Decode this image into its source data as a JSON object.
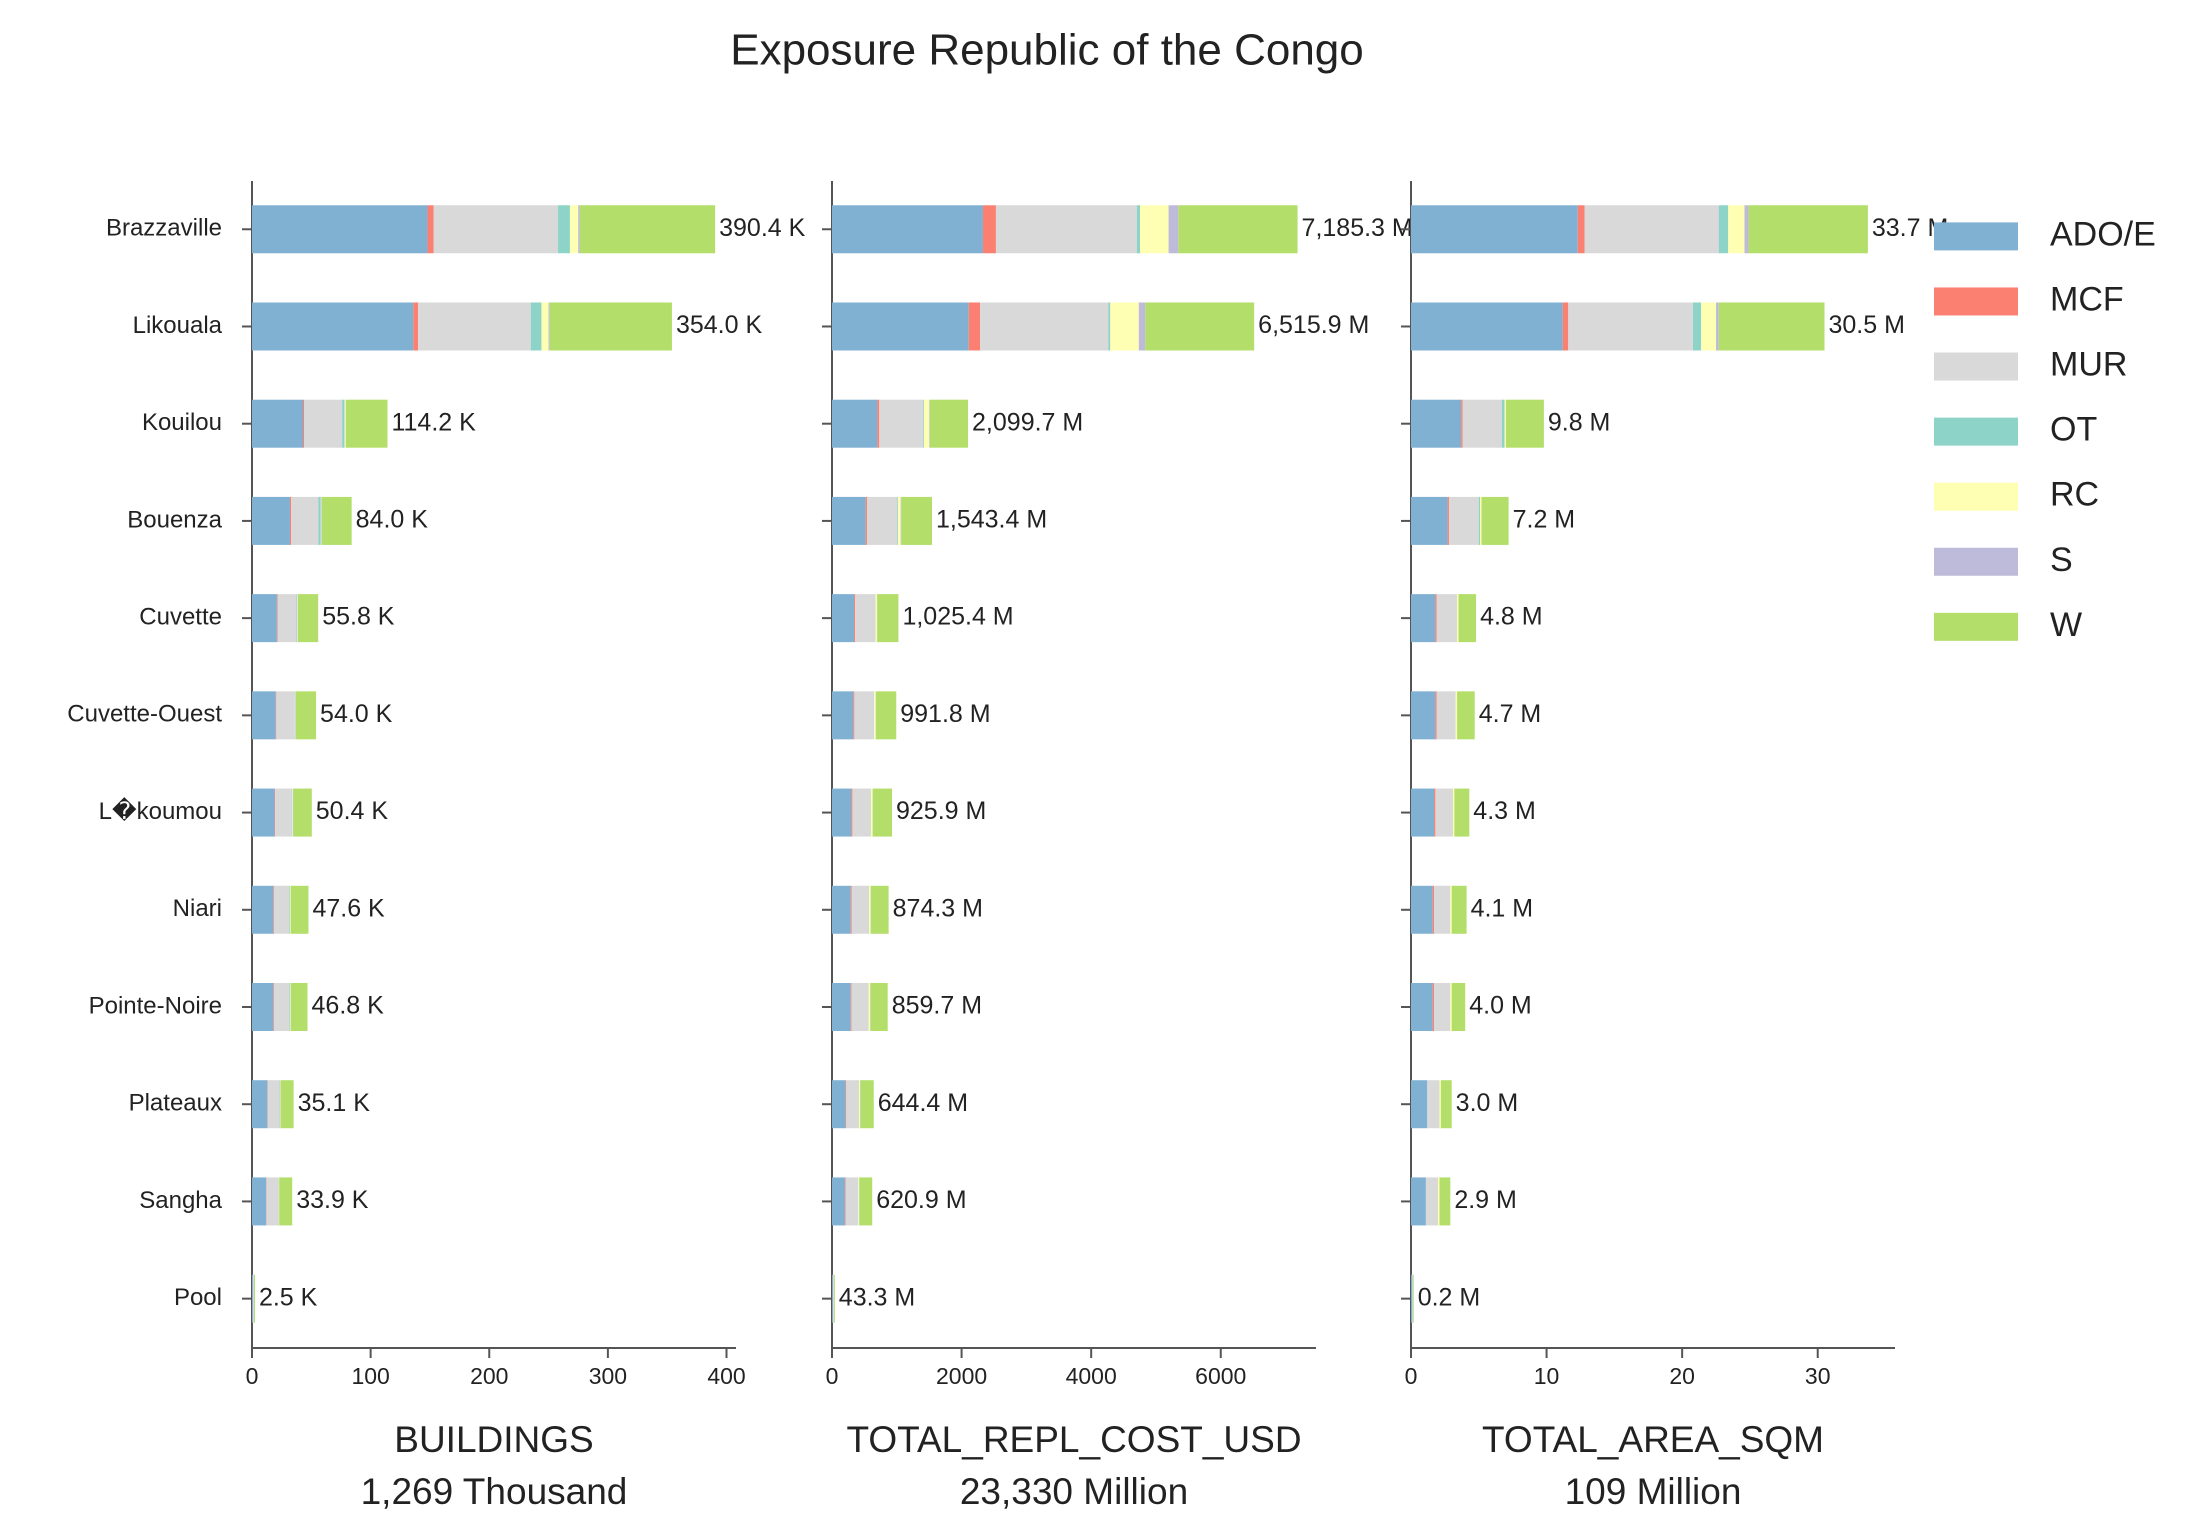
{
  "chart_data": {
    "type": "bar",
    "orientation": "horizontal",
    "stacked": true,
    "title": "Exposure Republic of the Congo",
    "categories": [
      "Brazzaville",
      "Likouala",
      "Kouilou",
      "Bouenza",
      "Cuvette",
      "Cuvette-Ouest",
      "L�koumou",
      "Niari",
      "Pointe-Noire",
      "Plateaux",
      "Sangha",
      "Pool"
    ],
    "series": [
      {
        "name": "ADO/E",
        "color": "#80b1d3"
      },
      {
        "name": "MCF",
        "color": "#fb8072"
      },
      {
        "name": "MUR",
        "color": "#d9d9d9"
      },
      {
        "name": "OT",
        "color": "#8dd3c7"
      },
      {
        "name": "RC",
        "color": "#ffffb3"
      },
      {
        "name": "S",
        "color": "#bebada"
      },
      {
        "name": "W",
        "color": "#b3de69"
      }
    ],
    "legend": "upper right",
    "panels": [
      {
        "xlabel": "BUILDINGS",
        "subtitle": "1,269 Thousand",
        "xlim": [
          0,
          408
        ],
        "xticks": [
          0,
          100,
          200,
          300,
          400
        ],
        "values": [
          [
            148,
            136,
            43,
            32,
            21,
            20,
            19,
            18,
            18,
            13,
            12,
            1
          ],
          [
            5,
            4,
            1,
            1,
            0.5,
            0.5,
            0.5,
            0.5,
            0.5,
            0.3,
            0.3,
            0
          ],
          [
            105,
            95,
            32,
            23,
            16,
            15,
            14,
            13,
            13,
            10,
            10,
            0.7
          ],
          [
            10,
            9,
            2,
            2,
            0.5,
            0.5,
            0.5,
            0.5,
            0.5,
            0.3,
            0.3,
            0
          ],
          [
            7,
            6,
            1,
            0.5,
            0.5,
            0.5,
            0.5,
            0.5,
            0.5,
            0.3,
            0.3,
            0
          ],
          [
            1.4,
            1,
            0.2,
            0.5,
            0.3,
            0.5,
            0.4,
            0.1,
            0.3,
            0.2,
            0,
            0
          ],
          [
            114,
            103,
            35,
            25,
            17,
            17,
            15.5,
            15,
            14,
            11,
            11,
            0.8
          ]
        ],
        "totals": [
          390.4,
          354.0,
          114.2,
          84.0,
          55.8,
          54.0,
          50.4,
          47.6,
          46.8,
          35.1,
          33.9,
          2.5
        ],
        "total_labels": [
          "390.4 K",
          "354.0 K",
          "114.2 K",
          "84.0 K",
          "55.8 K",
          "54.0 K",
          "50.4 K",
          "47.6 K",
          "46.8 K",
          "35.1 K",
          "33.9 K",
          "2.5 K"
        ]
      },
      {
        "xlabel": "TOTAL_REPL_COST_USD",
        "subtitle": "23,330 Million",
        "xlim": [
          0,
          7470
        ],
        "xticks": [
          0,
          2000,
          4000,
          6000
        ],
        "values": [
          [
            2330,
            2110,
            700,
            520,
            340,
            330,
            300,
            290,
            290,
            210,
            200,
            14
          ],
          [
            200,
            175,
            30,
            20,
            15,
            15,
            15,
            15,
            10,
            10,
            10,
            1
          ],
          [
            2175,
            1980,
            680,
            470,
            310,
            300,
            280,
            260,
            260,
            190,
            190,
            13
          ],
          [
            50,
            30,
            10,
            10,
            5,
            5,
            5,
            5,
            5,
            5,
            5,
            0
          ],
          [
            440,
            440,
            80,
            40,
            25,
            25,
            25,
            25,
            25,
            20,
            15,
            1
          ],
          [
            150,
            100,
            10,
            10,
            5,
            5,
            5,
            5,
            5,
            5,
            5,
            0
          ],
          [
            1840.3,
            1680.9,
            589.7,
            473.4,
            325.4,
            311.8,
            295.9,
            274.3,
            264.7,
            204.4,
            195.9,
            14.3
          ]
        ],
        "totals": [
          7185.3,
          6515.9,
          2099.7,
          1543.4,
          1025.4,
          991.8,
          925.9,
          874.3,
          859.7,
          644.4,
          620.9,
          43.3
        ],
        "total_labels": [
          "7,185.3 M",
          "6,515.9 M",
          "2,099.7 M",
          "1,543.4 M",
          "1,025.4 M",
          "991.8 M",
          "925.9 M",
          "874.3 M",
          "859.7 M",
          "644.4 M",
          "620.9 M",
          "43.3 M"
        ]
      },
      {
        "xlabel": "TOTAL_AREA_SQM",
        "subtitle": "109 Million",
        "xlim": [
          0,
          35.7
        ],
        "xticks": [
          0,
          10,
          20,
          30
        ],
        "values": [
          [
            12.3,
            11.2,
            3.7,
            2.7,
            1.8,
            1.8,
            1.7,
            1.6,
            1.6,
            1.2,
            1.1,
            0.1
          ],
          [
            0.5,
            0.4,
            0.1,
            0.1,
            0.1,
            0.1,
            0.1,
            0.1,
            0.1,
            0,
            0,
            0
          ],
          [
            9.9,
            9.2,
            2.9,
            2.2,
            1.5,
            1.4,
            1.3,
            1.2,
            1.2,
            0.9,
            0.9,
            0.05
          ],
          [
            0.7,
            0.6,
            0.2,
            0.1,
            0,
            0,
            0,
            0,
            0,
            0,
            0,
            0
          ],
          [
            1.2,
            1.1,
            0.1,
            0.1,
            0.1,
            0.1,
            0.1,
            0.1,
            0.1,
            0.1,
            0.1,
            0
          ],
          [
            0.3,
            0.2,
            0,
            0,
            0,
            0,
            0,
            0,
            0,
            0,
            0,
            0
          ],
          [
            8.8,
            7.8,
            2.8,
            2.0,
            1.3,
            1.3,
            1.1,
            1.1,
            1.0,
            0.8,
            0.8,
            0.05
          ]
        ],
        "totals": [
          33.7,
          30.5,
          9.8,
          7.2,
          4.8,
          4.7,
          4.3,
          4.1,
          4.0,
          3.0,
          2.9,
          0.2
        ],
        "total_labels": [
          "33.7 M",
          "30.5 M",
          "9.8 M",
          "7.2 M",
          "4.8 M",
          "4.7 M",
          "4.3 M",
          "4.1 M",
          "4.0 M",
          "3.0 M",
          "2.9 M",
          "0.2 M"
        ]
      }
    ]
  }
}
